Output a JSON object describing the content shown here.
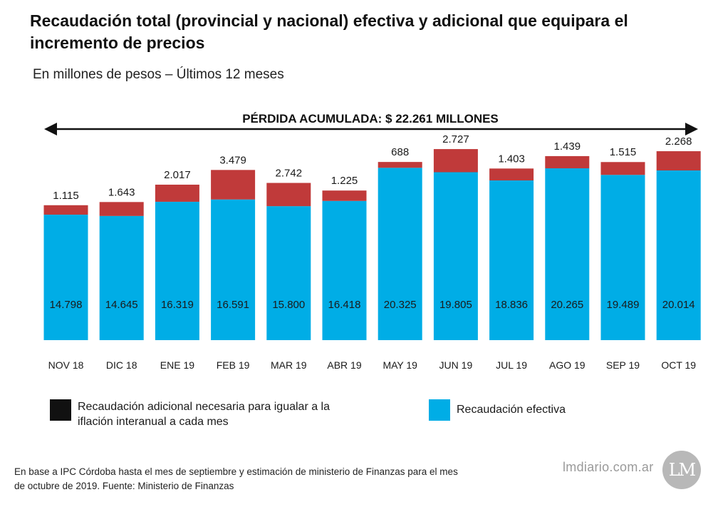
{
  "header": {
    "title": "Recaudación total (provincial y nacional) efectiva y adicional que equipara el incremento de precios",
    "subtitle": "En millones de pesos – Últimos 12 meses"
  },
  "colors": {
    "efectiva": "#00ade6",
    "adicional": "#c03a3a",
    "legend_adicional_swatch": "#111111",
    "arrow": "#111111"
  },
  "chart_data": {
    "type": "bar",
    "stacked": true,
    "categories": [
      "NOV 18",
      "DIC 18",
      "ENE 19",
      "FEB 19",
      "MAR 19",
      "ABR 19",
      "MAY 19",
      "JUN 19",
      "JUL 19",
      "AGO 19",
      "SEP 19",
      "OCT 19"
    ],
    "series": [
      {
        "name": "Recaudación efectiva",
        "values": [
          14798,
          14645,
          16319,
          16591,
          15800,
          16418,
          20325,
          19805,
          18836,
          20265,
          19489,
          20014
        ],
        "labels": [
          "14.798",
          "14.645",
          "16.319",
          "16.591",
          "15.800",
          "16.418",
          "20.325",
          "19.805",
          "18.836",
          "20.265",
          "19.489",
          "20.014"
        ]
      },
      {
        "name": "Recaudación adicional necesaria para igualar a la iflación interanual a cada mes",
        "values": [
          1115,
          1643,
          2017,
          3479,
          2742,
          1225,
          688,
          2727,
          1403,
          1439,
          1515,
          2268
        ],
        "labels": [
          "1.115",
          "1.643",
          "2.017",
          "3.479",
          "2.742",
          "1.225",
          "688",
          "2.727",
          "1.403",
          "1.439",
          "1.515",
          "2.268"
        ]
      }
    ],
    "annotation": "PÉRDIDA ACUMULADA: $ 22.261 MILLONES",
    "ylim": [
      0,
      27500
    ],
    "xlabel": "",
    "ylabel": ""
  },
  "legend": {
    "adicional_label": "Recaudación adicional necesaria para igualar a la iflación interanual a cada mes",
    "efectiva_label": "Recaudación efectiva"
  },
  "footer": {
    "note": "En base a IPC Córdoba hasta el mes de septiembre y estimación de ministerio de Finanzas para el mes de octubre de 2019.  Fuente: Ministerio de Finanzas",
    "credit": "lmdiario.com.ar",
    "logo_text": "LM"
  }
}
